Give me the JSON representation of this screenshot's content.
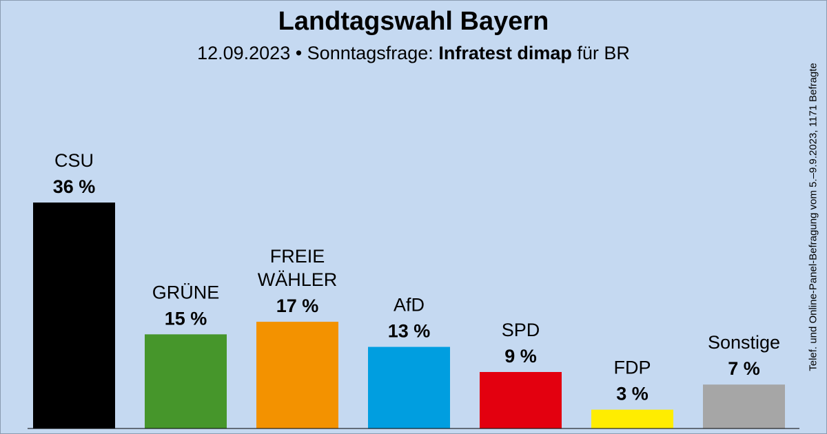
{
  "title": "Landtagswahl Bayern",
  "subtitle": {
    "date_prefix": "12.09.2023 • Sonntagsfrage:",
    "institute": "Infratest dimap",
    "client": "für BR"
  },
  "side_note": "Telef. und Online-Panel-Befragung vom 5.–9.9.2023, 1171 Befragte",
  "chart_data": {
    "type": "bar",
    "categories": [
      "CSU",
      "GRÜNE",
      "FREIE WÄHLER",
      "AfD",
      "SPD",
      "FDP",
      "Sonstige"
    ],
    "label_lines": [
      [
        "CSU"
      ],
      [
        "GRÜNE"
      ],
      [
        "FREIE",
        "WÄHLER"
      ],
      [
        "AfD"
      ],
      [
        "SPD"
      ],
      [
        "FDP"
      ],
      [
        "Sonstige"
      ]
    ],
    "values": [
      36,
      15,
      17,
      13,
      9,
      3,
      7
    ],
    "value_labels": [
      "36 %",
      "15 %",
      "17 %",
      "13 %",
      "9 %",
      "3 %",
      "7 %"
    ],
    "colors": [
      "#000000",
      "#46962b",
      "#f39200",
      "#009ee0",
      "#e3000f",
      "#ffed00",
      "#a6a6a6"
    ],
    "unit": "%",
    "ylim": [
      0,
      36
    ],
    "grid": false,
    "title": "Landtagswahl Bayern"
  }
}
